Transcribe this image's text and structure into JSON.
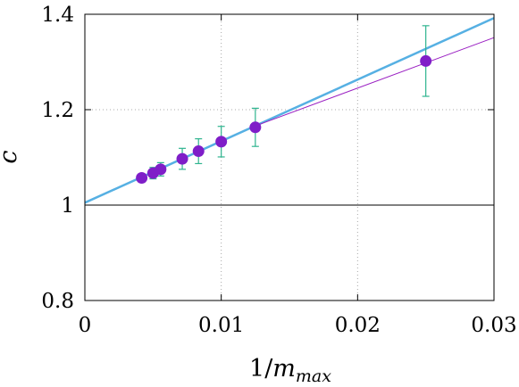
{
  "chart_data": {
    "type": "scatter",
    "xlabel_num": "1/",
    "xlabel_var": "m",
    "xlabel_sub": "max",
    "ylabel": "c",
    "xlim": [
      0,
      0.03
    ],
    "ylim": [
      0.8,
      1.4
    ],
    "xticks": [
      0,
      0.01,
      0.02,
      0.03
    ],
    "xtick_labels": [
      "0",
      "0.01",
      "0.02",
      "0.03"
    ],
    "yticks": [
      0.8,
      1.0,
      1.2,
      1.4
    ],
    "ytick_labels": [
      "0.8",
      "1",
      "1.2",
      "1.4"
    ],
    "grid": true,
    "reference_line_y": 1.0,
    "series": [
      {
        "marker": "circle",
        "color": "#7f1ec8",
        "errorbar_color": "#2fb48f",
        "x": [
          0.0041667,
          0.005,
          0.0055556,
          0.0071429,
          0.0083333,
          0.01,
          0.0125,
          0.025
        ],
        "y": [
          1.057,
          1.067,
          1.075,
          1.097,
          1.113,
          1.133,
          1.163,
          1.302
        ],
        "yerr": [
          0.006,
          0.012,
          0.014,
          0.022,
          0.026,
          0.032,
          0.04,
          0.074
        ]
      }
    ],
    "fits": [
      {
        "color": "#56b0e3",
        "stroke_width": 2.5,
        "x": [
          0,
          0.03
        ],
        "y": [
          1.005,
          1.392
        ]
      },
      {
        "color": "#9a1fc2",
        "stroke_width": 1,
        "x": [
          0.0125,
          0.03
        ],
        "y": [
          1.166,
          1.351
        ]
      }
    ]
  }
}
